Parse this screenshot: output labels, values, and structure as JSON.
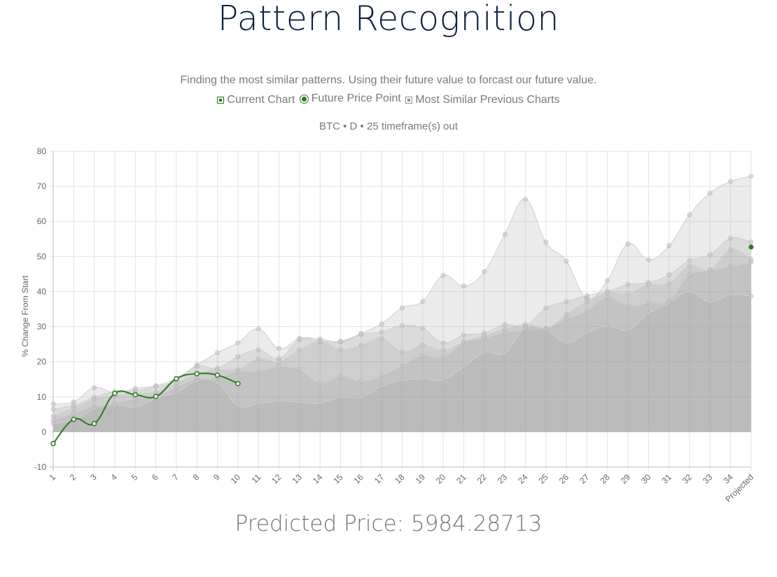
{
  "page": {
    "title": "Pattern Recognition",
    "description": "Finding the most similar patterns. Using their future value to forcast our future value.",
    "predicted_label": "Predicted Price: ",
    "predicted_value": "5984.28713"
  },
  "legend": {
    "current_chart": "Current Chart",
    "future_price_point": "Future Price Point",
    "most_similar": "Most Similar Previous Charts"
  },
  "colors": {
    "current": "#2b7a1e",
    "similar_fill": "#9b9b9b",
    "grid": "#e3e3e3",
    "title": "#0d1f44",
    "text": "#7a7a7a"
  },
  "chart_data": {
    "type": "line",
    "subtitle": "BTC • D • 25 timeframe(s) out",
    "ylabel": "% Change From Start",
    "xlabel": "",
    "ylim": [
      -10,
      80
    ],
    "yticks": [
      -10,
      0,
      10,
      20,
      30,
      40,
      50,
      60,
      70,
      80
    ],
    "grid": true,
    "categories": [
      "1",
      "2",
      "3",
      "4",
      "5",
      "6",
      "7",
      "8",
      "9",
      "10",
      "11",
      "12",
      "13",
      "14",
      "15",
      "16",
      "17",
      "18",
      "19",
      "20",
      "21",
      "22",
      "23",
      "24",
      "25",
      "26",
      "27",
      "28",
      "29",
      "30",
      "31",
      "32",
      "33",
      "34",
      "Projected"
    ],
    "current_chart": {
      "name": "Current Chart",
      "values": [
        -3.3,
        3.6,
        2.4,
        11.0,
        10.6,
        10.1,
        15.2,
        16.6,
        16.2,
        13.8
      ]
    },
    "future_price_point": {
      "name": "Future Price Point",
      "x": "Projected",
      "value": 52.7
    },
    "similar_series": [
      {
        "values": [
          8.0,
          8.6,
          12.6,
          11.2,
          12.4,
          13.2,
          15.2,
          19.1,
          22.6,
          25.4,
          29.4,
          23.8,
          26.7,
          26.5,
          25.7,
          28.1,
          30.8,
          35.4,
          37.2,
          44.6,
          41.6,
          45.7,
          56.3,
          66.3,
          54.1,
          48.7,
          38.1,
          43.2,
          53.6,
          49.1,
          53.1,
          61.9,
          68.1,
          71.4,
          72.9
        ]
      },
      {
        "values": [
          6.5,
          7.6,
          9.9,
          11.5,
          11.7,
          12.9,
          14.6,
          18.7,
          18.2,
          21.5,
          23.4,
          20.9,
          26.4,
          26.0,
          25.9,
          27.8,
          28.5,
          30.3,
          29.5,
          25.4,
          27.6,
          28.2,
          30.6,
          30.3,
          35.3,
          37.2,
          38.9,
          40.1,
          42.0,
          42.6,
          44.8,
          48.9,
          50.5,
          55.2,
          54.1
        ]
      },
      {
        "values": [
          4.5,
          6.8,
          9.3,
          10.4,
          11.0,
          11.3,
          13.9,
          16.5,
          17.8,
          17.8,
          20.9,
          20.0,
          23.4,
          25.8,
          23.5,
          24.7,
          26.6,
          22.9,
          24.8,
          23.3,
          25.6,
          27.5,
          29.2,
          30.7,
          29.5,
          33.5,
          37.2,
          39.7,
          39.5,
          42.0,
          42.3,
          47.3,
          46.2,
          52.0,
          49.2
        ]
      },
      {
        "values": [
          3.3,
          5.4,
          7.3,
          8.2,
          9.5,
          10.3,
          12.8,
          15.3,
          15.4,
          17.3,
          17.3,
          18.6,
          17.8,
          14.1,
          15.9,
          14.5,
          16.1,
          18.9,
          21.8,
          21.4,
          25.6,
          26.8,
          28.3,
          29.0,
          29.4,
          32.3,
          34.4,
          38.4,
          35.9,
          36.8,
          37.5,
          44.8,
          46.0,
          47.2,
          48.4
        ]
      },
      {
        "values": [
          2.4,
          3.4,
          6.6,
          7.7,
          7.1,
          9.6,
          11.3,
          14.5,
          14.1,
          7.5,
          8.1,
          8.8,
          8.5,
          8.2,
          10.0,
          9.9,
          13.1,
          14.8,
          15.1,
          14.9,
          18.6,
          22.6,
          22.5,
          29.6,
          29.2,
          25.4,
          28.3,
          30.2,
          29.1,
          33.8,
          36.8,
          40.1,
          37.1,
          39.2,
          38.7
        ]
      }
    ]
  }
}
